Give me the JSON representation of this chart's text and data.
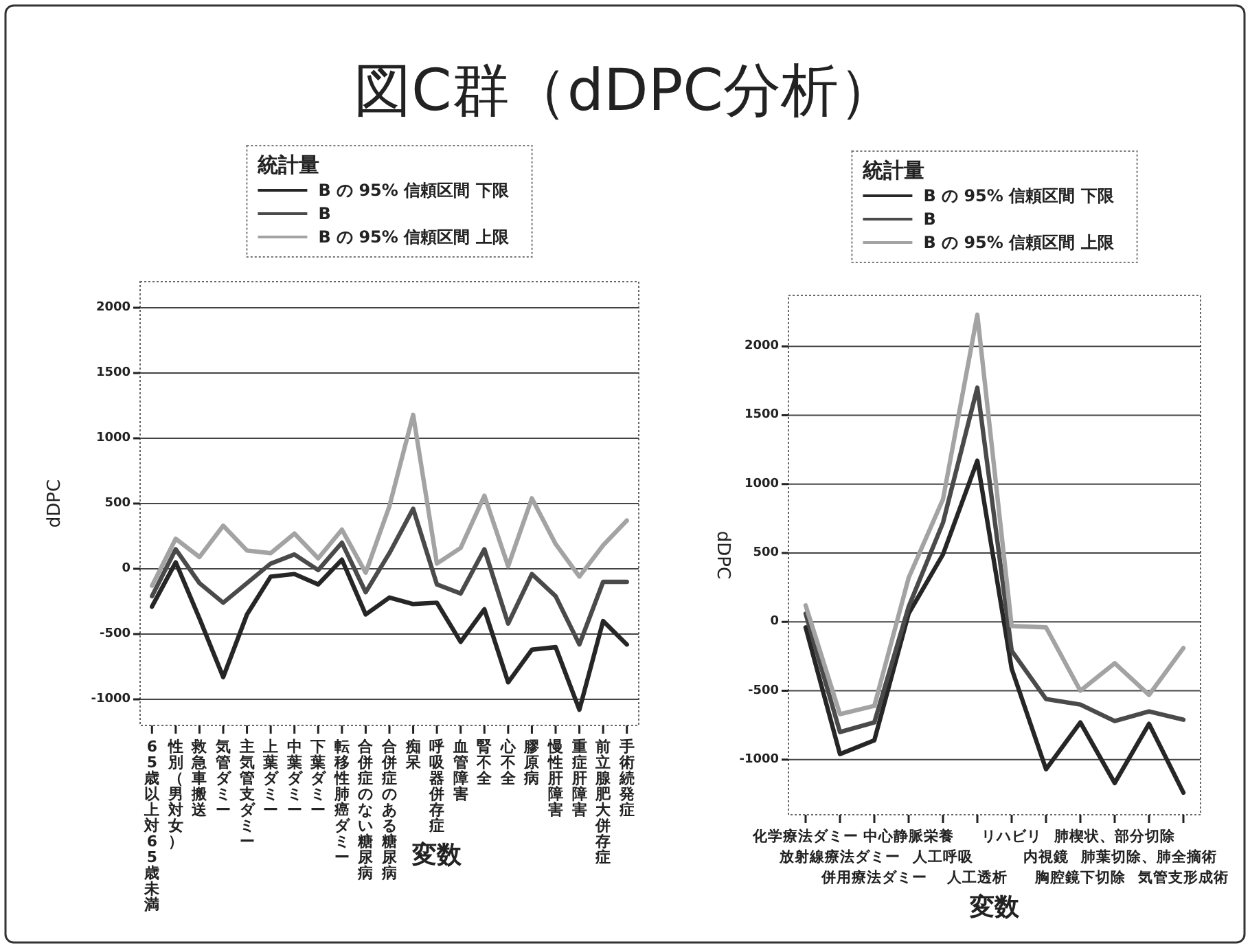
{
  "chart_data": [
    {
      "type": "line",
      "title": "図C群（dDPC分析）",
      "xlabel": "変数",
      "ylabel": "dDPC",
      "legend_title": "統計量",
      "legend": "top",
      "grid": "y",
      "ylim": [
        -1200,
        2200
      ],
      "yticks": [
        -1000,
        -500,
        0,
        500,
        1000,
        1500,
        2000
      ],
      "categories": [
        "65歳以上対65歳未満",
        "性別（男対女）",
        "救急車搬送",
        "気管ダミー",
        "主気管支ダミー",
        "上葉ダミー",
        "中葉ダミー",
        "下葉ダミー",
        "転移性肺癌ダミー",
        "合併症のない糖尿病",
        "合併症のある糖尿病",
        "痴呆",
        "呼吸器併存症",
        "血管障害",
        "腎不全",
        "心不全",
        "膠原病",
        "慢性肝障害",
        "重症肝障害",
        "前立腺肥大併存症",
        "手術続発症"
      ],
      "series": [
        {
          "name": "B の 95% 信頼区間 下限",
          "color": "#262626",
          "values": [
            -290,
            50,
            -380,
            -830,
            -350,
            -60,
            -40,
            -120,
            70,
            -350,
            -220,
            -270,
            -260,
            -560,
            -310,
            -870,
            -620,
            -600,
            -1080,
            -400,
            -580
          ]
        },
        {
          "name": "B",
          "color": "#4a4a4a",
          "values": [
            -210,
            150,
            -110,
            -260,
            -110,
            40,
            110,
            -10,
            200,
            -180,
            120,
            460,
            -120,
            -190,
            150,
            -420,
            -40,
            -210,
            -580,
            -100,
            -100
          ]
        },
        {
          "name": "B の 95% 信頼区間 上限",
          "color": "#a3a3a3",
          "values": [
            -130,
            230,
            90,
            330,
            140,
            120,
            270,
            80,
            300,
            -30,
            480,
            1180,
            40,
            160,
            560,
            20,
            540,
            190,
            -60,
            180,
            370
          ]
        }
      ]
    },
    {
      "type": "line",
      "xlabel": "変数",
      "ylabel": "dDPC",
      "legend_title": "統計量",
      "legend": "top",
      "grid": "y",
      "ylim": [
        -1400,
        2370
      ],
      "yticks": [
        -1000,
        -500,
        0,
        500,
        1000,
        1500,
        2000
      ],
      "categories": [
        "化学療法ダミー",
        "放射線療法ダミー",
        "併用療法ダミー",
        "中心静脈栄養",
        "人工呼吸",
        "人工透析",
        "リハビリ",
        "内視鏡",
        "胸腔鏡下切除",
        "肺楔状、部分切除",
        "肺葉切除、肺全摘術",
        "気管支形成術"
      ],
      "series": [
        {
          "name": "B の 95% 信頼区間 下限",
          "color": "#262626",
          "values": [
            -40,
            -960,
            -860,
            60,
            490,
            1170,
            -340,
            -1070,
            -730,
            -1170,
            -740,
            -1240
          ]
        },
        {
          "name": "B",
          "color": "#4a4a4a",
          "values": [
            60,
            -800,
            -730,
            110,
            720,
            1700,
            -210,
            -560,
            -600,
            -720,
            -650,
            -710
          ]
        },
        {
          "name": "B の 95% 信頼区間 上限",
          "color": "#a3a3a3",
          "values": [
            120,
            -670,
            -610,
            320,
            890,
            2230,
            -30,
            -40,
            -500,
            -300,
            -530,
            -190
          ]
        }
      ]
    }
  ]
}
